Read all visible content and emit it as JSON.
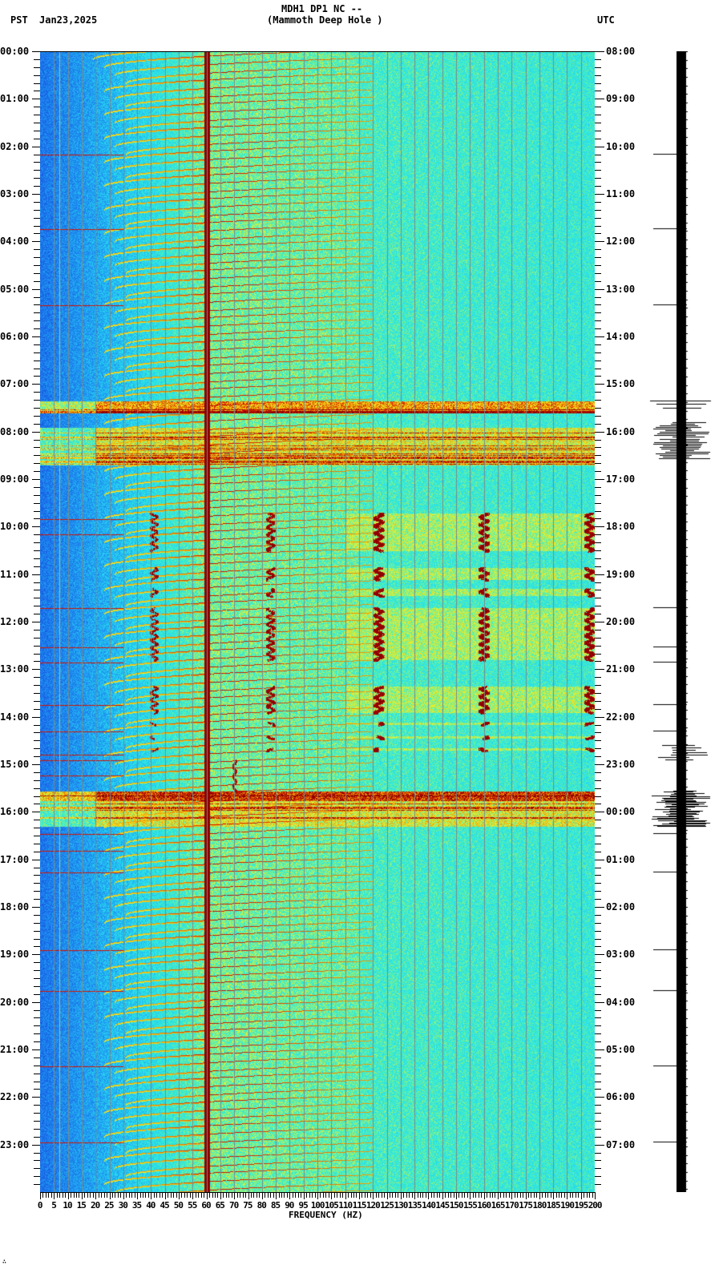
{
  "header": {
    "station": "MDH1 DP1 NC --",
    "location": "(Mammoth Deep Hole )",
    "left_tz": "PST",
    "date": "Jan23,2025",
    "right_tz": "UTC"
  },
  "footer": {
    "xlabel": "FREQUENCY (HZ)",
    "corner_mark": "∴"
  },
  "colors": {
    "low": "#1e64e6",
    "mid_low": "#28c8f0",
    "mid": "#32f0d2",
    "mid_high": "#f0f028",
    "high": "#f0a000",
    "peak": "#8c0000",
    "gridline": "#7a8a8a"
  },
  "chart_data": {
    "type": "heatmap",
    "title": "MDH1 DP1 NC -- (Mammoth Deep Hole ) Jan23,2025",
    "xlabel": "FREQUENCY (HZ)",
    "ylabel_left": "PST",
    "ylabel_right": "UTC",
    "xlim": [
      0,
      200
    ],
    "x_ticks": [
      0,
      5,
      10,
      15,
      20,
      25,
      30,
      35,
      40,
      45,
      50,
      55,
      60,
      65,
      70,
      75,
      80,
      85,
      90,
      95,
      100,
      105,
      110,
      115,
      120,
      125,
      130,
      135,
      140,
      145,
      150,
      155,
      160,
      165,
      170,
      175,
      180,
      185,
      190,
      195,
      200
    ],
    "x_tick_labels": [
      "0",
      "5",
      "10",
      "15",
      "20",
      "25",
      "30",
      "35",
      "40",
      "45",
      "50",
      "55",
      "60",
      "65",
      "70",
      "75",
      "80",
      "85",
      "90",
      "95",
      "100",
      "105",
      "110",
      "115",
      "120",
      "125",
      "130",
      "135",
      "140",
      "145",
      "150",
      "155",
      "160",
      "165",
      "170",
      "175",
      "180",
      "185",
      "190",
      "195",
      "200"
    ],
    "y_ticks_left": [
      "00:00",
      "01:00",
      "02:00",
      "03:00",
      "04:00",
      "05:00",
      "06:00",
      "07:00",
      "08:00",
      "09:00",
      "10:00",
      "11:00",
      "12:00",
      "13:00",
      "14:00",
      "15:00",
      "16:00",
      "17:00",
      "18:00",
      "19:00",
      "20:00",
      "21:00",
      "22:00",
      "23:00"
    ],
    "y_ticks_right": [
      "08:00",
      "09:00",
      "10:00",
      "11:00",
      "12:00",
      "13:00",
      "14:00",
      "15:00",
      "16:00",
      "17:00",
      "18:00",
      "19:00",
      "20:00",
      "21:00",
      "22:00",
      "23:00",
      "00:00",
      "01:00",
      "02:00",
      "03:00",
      "04:00",
      "05:00",
      "06:00",
      "07:00"
    ],
    "grid": true,
    "minor_ticks_per_hour": 6,
    "persistent_lines_hz": [
      60,
      180
    ],
    "colormap": "jet (blue low -> cyan -> yellow -> red -> dark red high)",
    "features": [
      {
        "type": "constant-line",
        "freq_hz": 60,
        "intensity": "peak",
        "description": "Strong 60 Hz power line"
      },
      {
        "type": "constant-line",
        "freq_hz": 180,
        "intensity": "high",
        "description": "Thin 180 Hz harmonic"
      },
      {
        "type": "gliding-tones",
        "period_min": 10,
        "freq_range_hz": [
          25,
          120
        ],
        "description": "Repeating upward-curving bands"
      },
      {
        "type": "broadband-noise",
        "start_pst": "07:20",
        "end_pst": "08:45",
        "freq_range_hz": [
          0,
          200
        ]
      },
      {
        "type": "event-tracks",
        "start_pst": "09:40",
        "end_pst": "14:50",
        "freqs_hz": [
          40,
          83,
          122,
          160,
          198
        ]
      },
      {
        "type": "broadband-noise",
        "start_pst": "15:35",
        "end_pst": "16:20",
        "freq_range_hz": [
          0,
          200
        ]
      }
    ],
    "waveform": {
      "position": "right",
      "bursts_pst": [
        "07:25",
        "07:55-08:35",
        "14:45",
        "15:35-16:15"
      ]
    }
  }
}
